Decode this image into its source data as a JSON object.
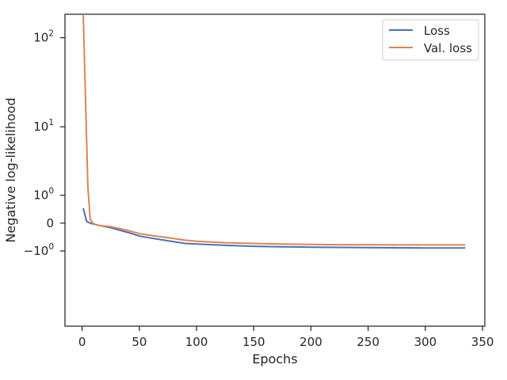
{
  "chart_data": {
    "type": "line",
    "title": "",
    "xlabel": "Epochs",
    "ylabel": "Negative log-likelihood",
    "y_scale": "symlog",
    "x_ticks": [
      0,
      50,
      100,
      150,
      200,
      250,
      300,
      350
    ],
    "x_tick_labels": [
      "0",
      "50",
      "100",
      "150",
      "200",
      "250",
      "300",
      "350"
    ],
    "y_ticks": [
      {
        "value": 100,
        "base": "10",
        "exp": "2"
      },
      {
        "value": 10,
        "base": "10",
        "exp": "1"
      },
      {
        "value": 1,
        "base": "10",
        "exp": "0"
      },
      {
        "value": 0,
        "text": "0"
      },
      {
        "value": -1,
        "base": "−10",
        "exp": "0"
      }
    ],
    "xlim": [
      -15,
      352
    ],
    "ylim": [
      -12,
      180
    ],
    "legend": "top-right",
    "grid": false,
    "series": [
      {
        "name": "Loss",
        "color": "#4c72b0",
        "points": [
          [
            1,
            0.45
          ],
          [
            4,
            0.04
          ],
          [
            8,
            -0.01
          ],
          [
            15,
            -0.06
          ],
          [
            25,
            -0.12
          ],
          [
            40,
            -0.26
          ],
          [
            50,
            -0.38
          ],
          [
            60,
            -0.45
          ],
          [
            75,
            -0.55
          ],
          [
            90,
            -0.66
          ],
          [
            100,
            -0.68
          ],
          [
            125,
            -0.74
          ],
          [
            150,
            -0.78
          ],
          [
            175,
            -0.8
          ],
          [
            200,
            -0.82
          ],
          [
            225,
            -0.83
          ],
          [
            250,
            -0.84
          ],
          [
            275,
            -0.85
          ],
          [
            300,
            -0.86
          ],
          [
            320,
            -0.86
          ],
          [
            335,
            -0.86
          ]
        ]
      },
      {
        "name": "Val. loss",
        "color": "#dd8452",
        "points": [
          [
            1,
            180
          ],
          [
            3,
            20
          ],
          [
            5,
            1.5
          ],
          [
            7,
            0.1
          ],
          [
            10,
            -0.02
          ],
          [
            15,
            -0.06
          ],
          [
            25,
            -0.09
          ],
          [
            40,
            -0.2
          ],
          [
            50,
            -0.3
          ],
          [
            60,
            -0.36
          ],
          [
            75,
            -0.44
          ],
          [
            90,
            -0.53
          ],
          [
            100,
            -0.57
          ],
          [
            125,
            -0.63
          ],
          [
            150,
            -0.66
          ],
          [
            175,
            -0.68
          ],
          [
            200,
            -0.7
          ],
          [
            225,
            -0.71
          ],
          [
            250,
            -0.71
          ],
          [
            275,
            -0.72
          ],
          [
            300,
            -0.72
          ],
          [
            320,
            -0.72
          ],
          [
            335,
            -0.72
          ]
        ]
      }
    ]
  }
}
